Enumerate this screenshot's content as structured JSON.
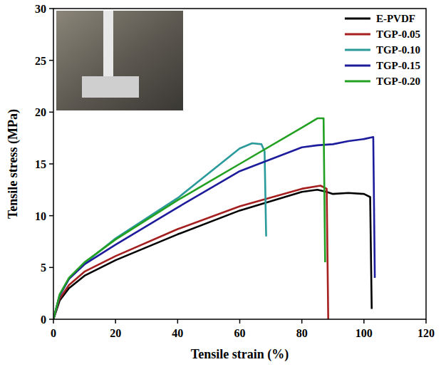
{
  "chart_data": {
    "type": "line",
    "x_label": "Tensile strain (%)",
    "y_label": "Tensile stress (MPa)",
    "xlim": [
      0,
      120
    ],
    "ylim": [
      0,
      30
    ],
    "xticks": [
      0,
      20,
      40,
      60,
      80,
      100,
      120
    ],
    "yticks": [
      0,
      5,
      10,
      15,
      20,
      25,
      30
    ],
    "grid": false,
    "legend": "top-right",
    "series": [
      {
        "name": "E-PVDF",
        "color": "#000000",
        "x": [
          0,
          2,
          5,
          10,
          20,
          40,
          60,
          80,
          85,
          88,
          90,
          95,
          100,
          102,
          102.5
        ],
        "values": [
          0,
          1.8,
          3.0,
          4.2,
          5.7,
          8.2,
          10.5,
          12.3,
          12.5,
          12.3,
          12.1,
          12.2,
          12.1,
          11.8,
          1.0
        ]
      },
      {
        "name": "TGP-0.05",
        "color": "#a51f1f",
        "x": [
          0,
          2,
          5,
          10,
          20,
          40,
          60,
          80,
          86,
          88,
          88.5
        ],
        "values": [
          0,
          2.0,
          3.3,
          4.6,
          6.1,
          8.7,
          10.9,
          12.6,
          12.9,
          12.6,
          0
        ]
      },
      {
        "name": "TGP-0.10",
        "color": "#2a9a9a",
        "x": [
          0,
          2,
          5,
          10,
          20,
          40,
          60,
          64,
          67,
          68,
          68.5
        ],
        "values": [
          0,
          2.3,
          3.9,
          5.4,
          7.8,
          11.7,
          16.5,
          17.0,
          16.9,
          16.2,
          8.0
        ]
      },
      {
        "name": "TGP-0.15",
        "color": "#1c1c9c",
        "x": [
          0,
          2,
          5,
          10,
          20,
          40,
          60,
          80,
          85,
          90,
          95,
          100,
          103,
          103.5
        ],
        "values": [
          0,
          2.3,
          3.9,
          5.3,
          7.2,
          10.8,
          14.3,
          16.6,
          16.8,
          16.9,
          17.2,
          17.4,
          17.6,
          4.0
        ]
      },
      {
        "name": "TGP-0.20",
        "color": "#22a022",
        "x": [
          0,
          2,
          5,
          10,
          20,
          40,
          60,
          80,
          85,
          87,
          87.5
        ],
        "values": [
          0,
          2.4,
          4.0,
          5.5,
          7.7,
          11.5,
          15.0,
          18.5,
          19.4,
          19.4,
          5.5
        ]
      }
    ]
  }
}
